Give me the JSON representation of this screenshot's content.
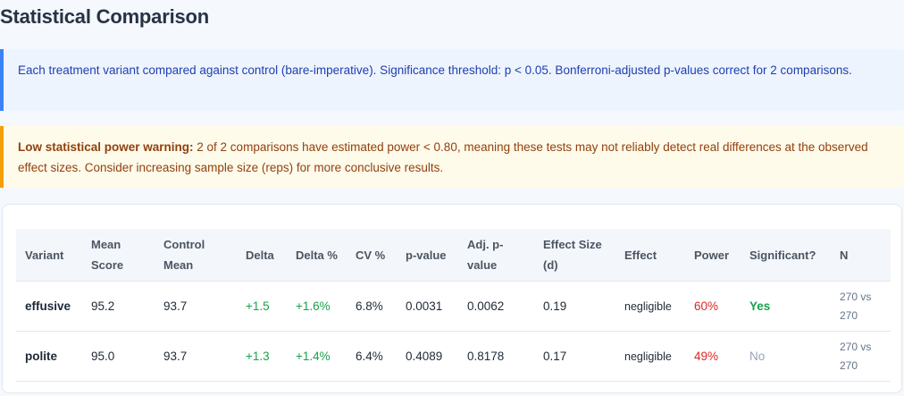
{
  "page": {
    "title": "Statistical Comparison"
  },
  "info": {
    "text": "Each treatment variant compared against control (bare-imperative). Significance threshold: p < 0.05. Bonferroni-adjusted p-values correct for 2 comparisons."
  },
  "warning": {
    "label": "Low statistical power warning:",
    "text": " 2 of 2 comparisons have estimated power < 0.80, meaning these tests may not reliably detect real differences at the observed effect sizes. Consider increasing sample size (reps) for more conclusive results."
  },
  "colors": {
    "info_accent": "#3b82f6",
    "warning_accent": "#f59e0b",
    "positive": "#16a34a",
    "negative": "#dc2626",
    "muted": "#94a3b8"
  },
  "table": {
    "headers": {
      "variant": "Variant",
      "mean_score": "Mean Score",
      "control_mean": "Control Mean",
      "delta": "Delta",
      "delta_pct": "Delta %",
      "cv_pct": "CV %",
      "p_value": "p-value",
      "adj_p_value": "Adj. p-value",
      "effect_size": "Effect Size (d)",
      "effect": "Effect",
      "power": "Power",
      "significant": "Significant?",
      "n": "N"
    },
    "rows": [
      {
        "variant": "effusive",
        "mean_score": "95.2",
        "control_mean": "93.7",
        "delta": "+1.5",
        "delta_pct": "+1.6%",
        "cv_pct": "6.8%",
        "p_value": "0.0031",
        "adj_p_value": "0.0062",
        "effect_size": "0.19",
        "effect": "negligible",
        "power": "60%",
        "significant": "Yes",
        "n": "270 vs 270"
      },
      {
        "variant": "polite",
        "mean_score": "95.0",
        "control_mean": "93.7",
        "delta": "+1.3",
        "delta_pct": "+1.4%",
        "cv_pct": "6.4%",
        "p_value": "0.4089",
        "adj_p_value": "0.8178",
        "effect_size": "0.17",
        "effect": "negligible",
        "power": "49%",
        "significant": "No",
        "n": "270 vs 270"
      }
    ]
  }
}
